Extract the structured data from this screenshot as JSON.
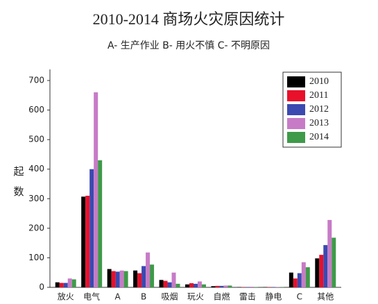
{
  "chart_data": {
    "type": "bar",
    "title": "2010-2014 商场火灾原因统计",
    "subtitle": "A- 生产作业 B- 用火不慎 C- 不明原因",
    "y_label": "起数",
    "categories": [
      "放火",
      "电气",
      "A",
      "B",
      "吸烟",
      "玩火",
      "自燃",
      "雷击",
      "静电",
      "C",
      "其他"
    ],
    "series": [
      {
        "name": "2010",
        "color": "#000000",
        "values": [
          17,
          307,
          62,
          57,
          25,
          10,
          4,
          1,
          1,
          50,
          98
        ]
      },
      {
        "name": "2011",
        "color": "#e8102a",
        "values": [
          15,
          310,
          55,
          48,
          22,
          14,
          5,
          1,
          1,
          30,
          110
        ]
      },
      {
        "name": "2012",
        "color": "#3b49b0",
        "values": [
          15,
          400,
          53,
          72,
          17,
          12,
          5,
          1,
          1,
          48,
          143
        ]
      },
      {
        "name": "2013",
        "color": "#c77bc6",
        "values": [
          30,
          660,
          57,
          118,
          50,
          20,
          6,
          2,
          1,
          85,
          228
        ]
      },
      {
        "name": "2014",
        "color": "#3f9a4a",
        "values": [
          27,
          430,
          55,
          77,
          12,
          10,
          6,
          1,
          1,
          68,
          168
        ]
      }
    ],
    "ylim": [
      0,
      700
    ],
    "yticks": [
      0,
      100,
      200,
      300,
      400,
      500,
      600,
      700
    ],
    "grid": false,
    "legend": "top-right"
  }
}
